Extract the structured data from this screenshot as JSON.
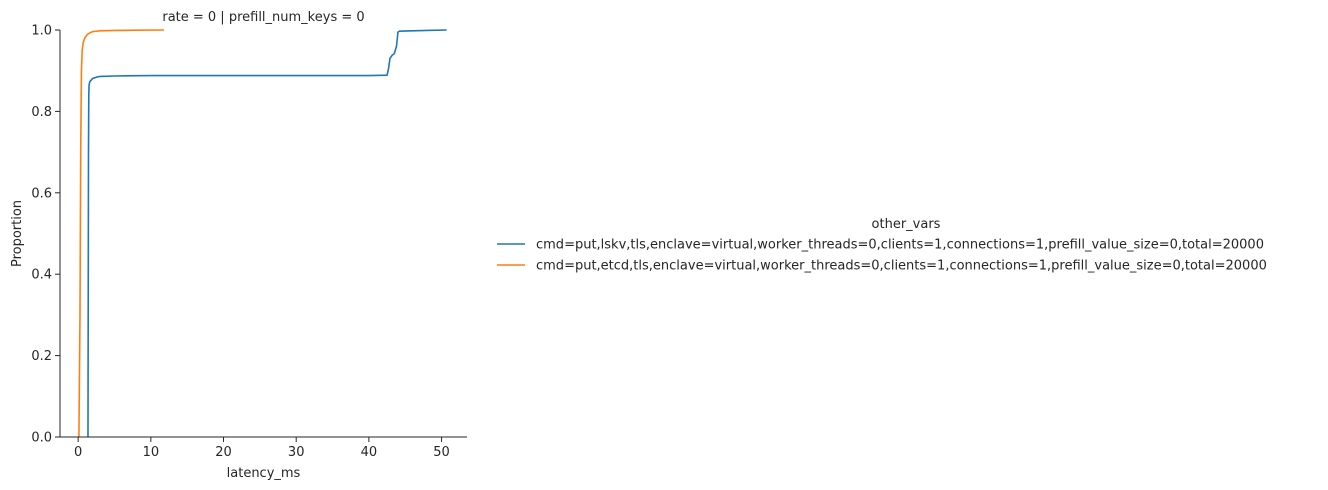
{
  "chart_data": {
    "type": "line",
    "title": "rate = 0 | prefill_num_keys = 0",
    "xlabel": "latency_ms",
    "ylabel": "Proportion",
    "xlim": [
      -2.5,
      53.5
    ],
    "ylim": [
      0,
      1.0
    ],
    "xticks": [
      0,
      10,
      20,
      30,
      40,
      50
    ],
    "xtick_labels": [
      "0",
      "10",
      "20",
      "30",
      "40",
      "50"
    ],
    "yticks": [
      0.0,
      0.2,
      0.4,
      0.6,
      0.8,
      1.0
    ],
    "ytick_labels": [
      "0.0",
      "0.2",
      "0.4",
      "0.6",
      "0.8",
      "1.0"
    ],
    "grid": false,
    "legend": {
      "title": "other_vars",
      "placement": "right"
    },
    "series": [
      {
        "name": "cmd=put,lskv,tls,enclave=virtual,worker_threads=0,clients=1,connections=1,prefill_value_size=0,total=20000",
        "color": "#1f77b4",
        "x": [
          1.35,
          1.38,
          1.42,
          1.46,
          1.5,
          1.6,
          1.8,
          2.0,
          2.5,
          3.0,
          5.0,
          10.0,
          20.0,
          30.0,
          40.0,
          42.5,
          42.7,
          42.9,
          43.2,
          43.5,
          43.8,
          44.0,
          44.2,
          46.0,
          48.0,
          50.7
        ],
        "y": [
          0.0,
          0.3,
          0.7,
          0.84,
          0.865,
          0.873,
          0.877,
          0.881,
          0.884,
          0.886,
          0.887,
          0.888,
          0.888,
          0.888,
          0.888,
          0.889,
          0.905,
          0.93,
          0.938,
          0.942,
          0.96,
          0.995,
          0.997,
          0.998,
          0.999,
          1.0
        ]
      },
      {
        "name": "cmd=put,etcd,tls,enclave=virtual,worker_threads=0,clients=1,connections=1,prefill_value_size=0,total=20000",
        "color": "#ff7f0e",
        "x": [
          0.1,
          0.25,
          0.35,
          0.45,
          0.55,
          0.7,
          0.9,
          1.2,
          1.6,
          2.0,
          3.0,
          5.0,
          8.0,
          11.8
        ],
        "y": [
          0.0,
          0.3,
          0.7,
          0.9,
          0.95,
          0.97,
          0.98,
          0.988,
          0.993,
          0.996,
          0.998,
          0.999,
          0.9995,
          1.0
        ]
      }
    ]
  }
}
